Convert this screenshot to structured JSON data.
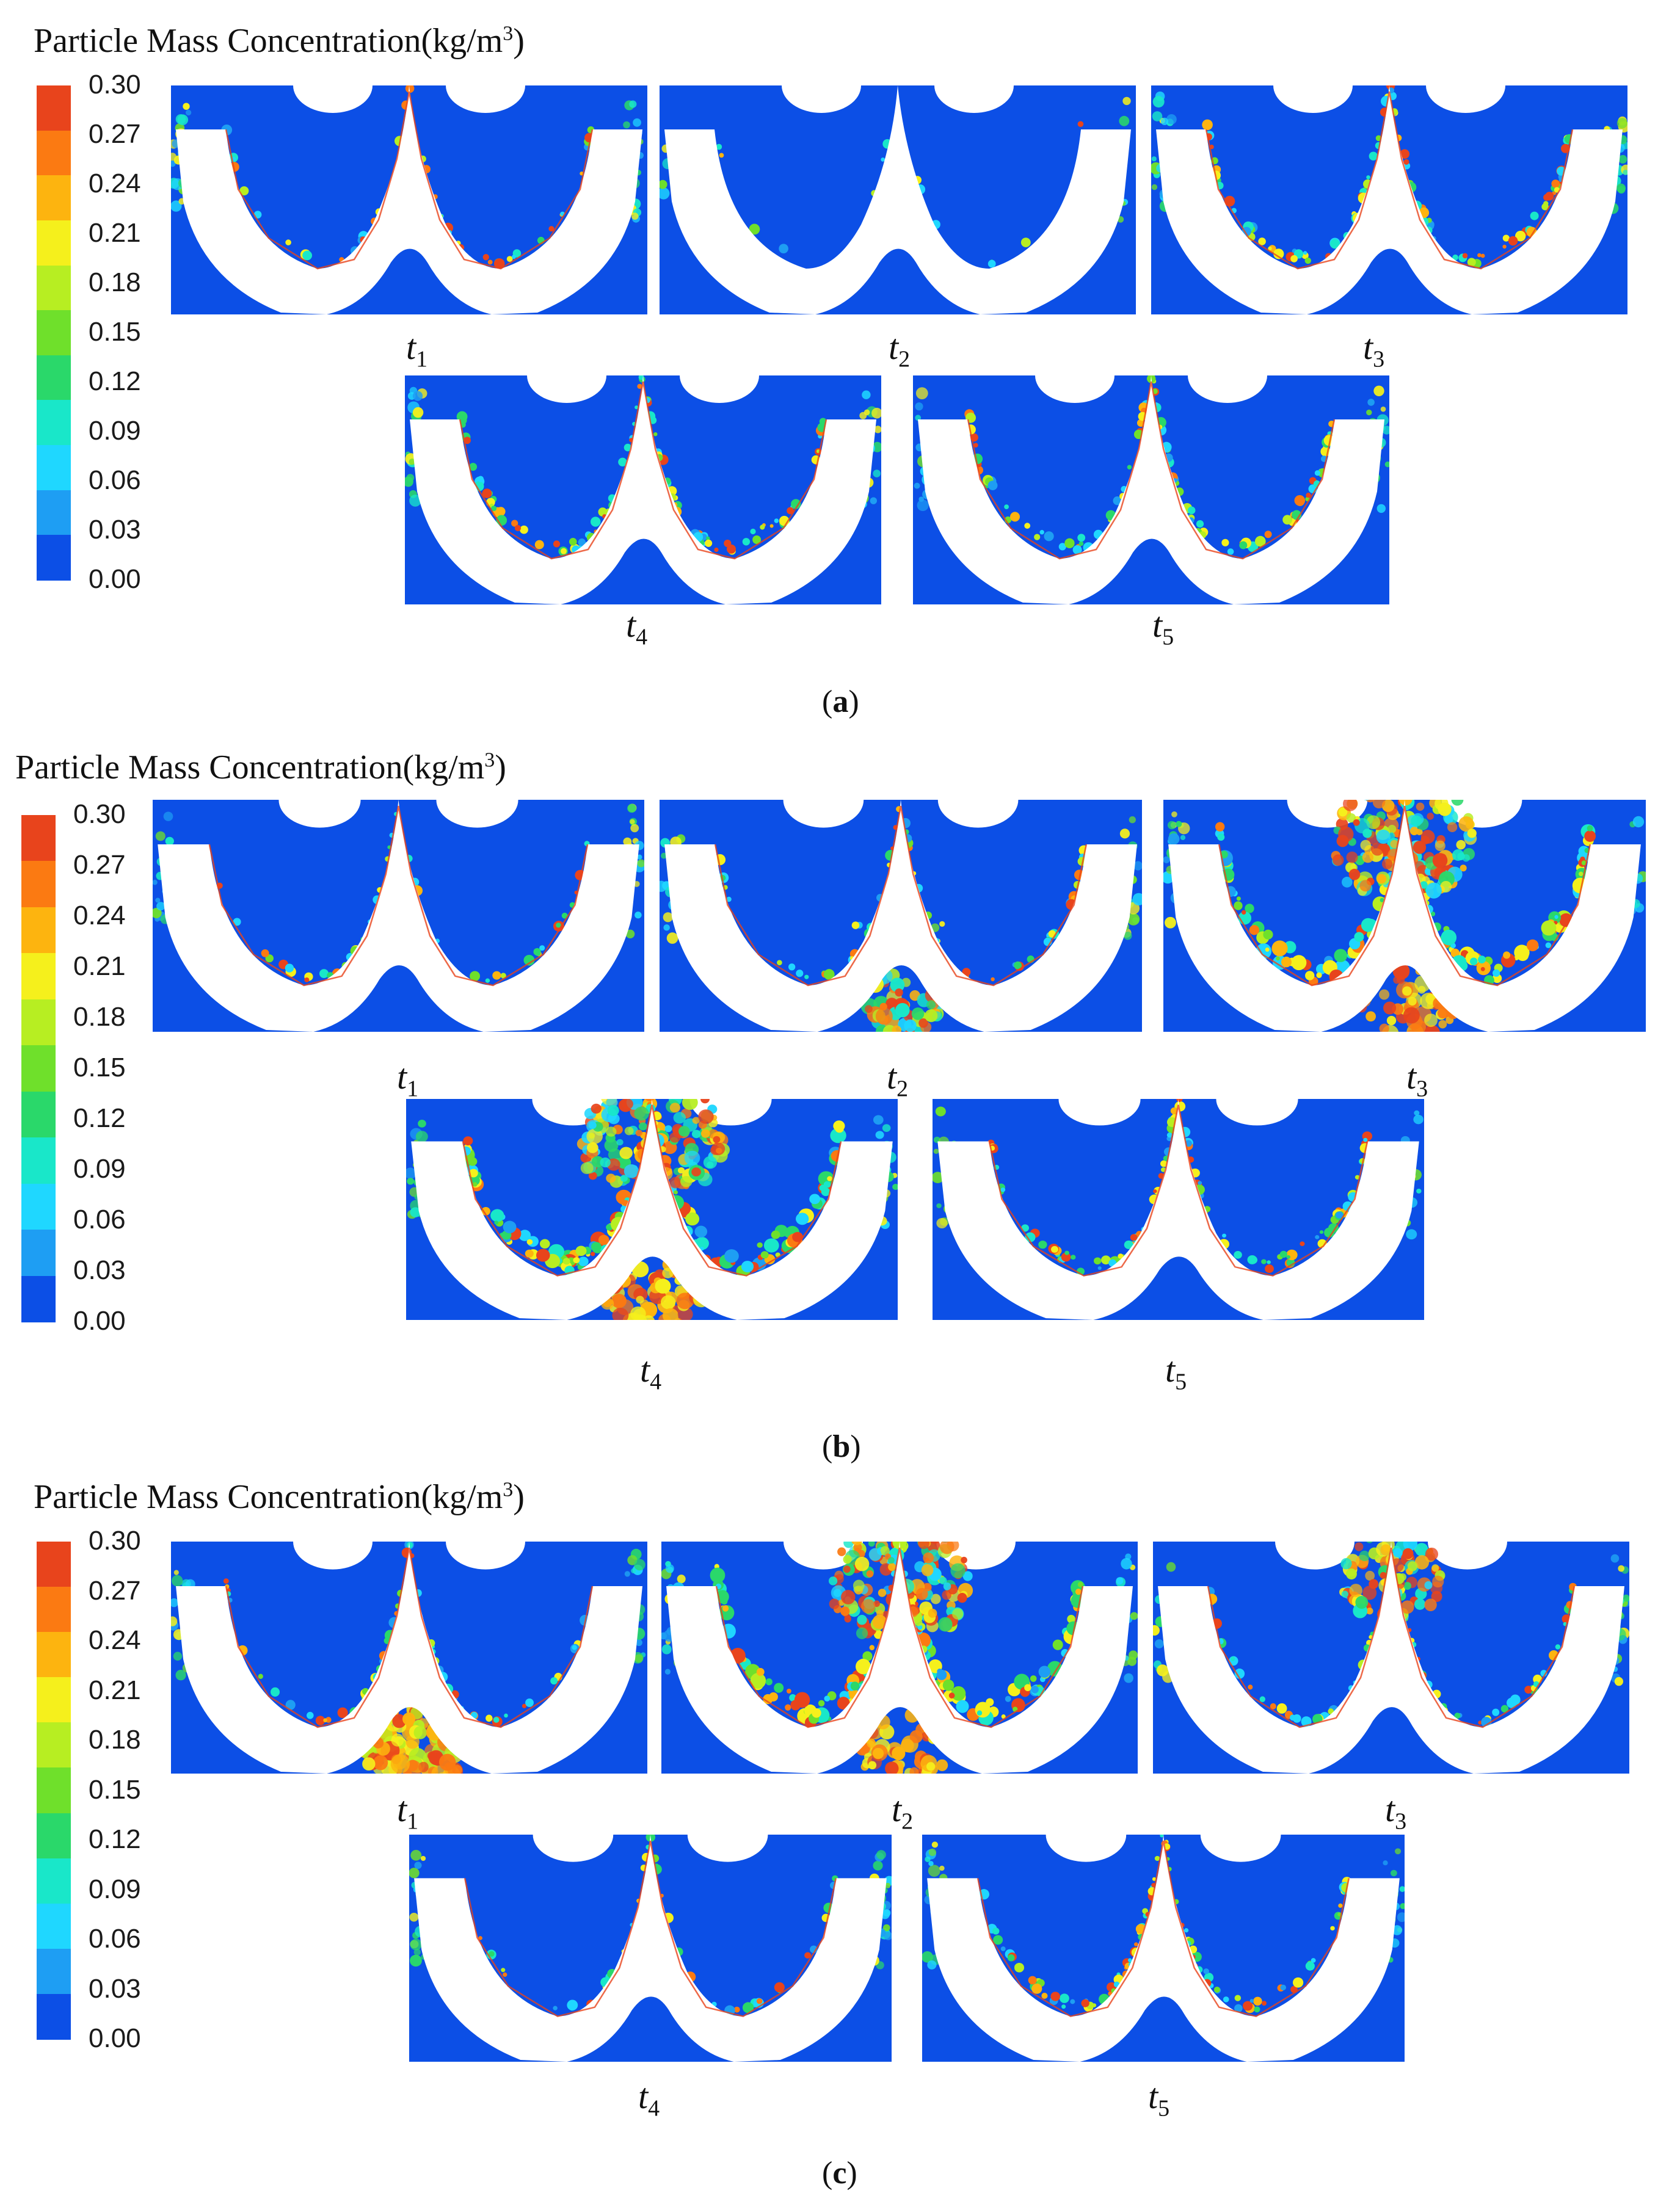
{
  "legend": {
    "title": "Particle Mass Concentration(kg/m",
    "title_sup": "3",
    "title_close": ")",
    "ticks": [
      "0.30",
      "0.27",
      "0.24",
      "0.21",
      "0.18",
      "0.15",
      "0.12",
      "0.09",
      "0.06",
      "0.03",
      "0.00"
    ],
    "colors": [
      "#e8441c",
      "#fb7a12",
      "#fdb40f",
      "#f5f01c",
      "#b7ee22",
      "#6fe02b",
      "#2ad86a",
      "#19e7c9",
      "#1fd7ff",
      "#1e9ef3",
      "#0c4fe6"
    ]
  },
  "colors": {
    "background": "#0c4fe6",
    "wall": "#ffffff"
  },
  "panels": [
    {
      "id": "a",
      "caption": "a",
      "frames": [
        {
          "base": "t",
          "sub": "1",
          "intensity": "low"
        },
        {
          "base": "t",
          "sub": "2",
          "intensity": "minimal"
        },
        {
          "base": "t",
          "sub": "3",
          "intensity": "medium"
        },
        {
          "base": "t",
          "sub": "4",
          "intensity": "medium"
        },
        {
          "base": "t",
          "sub": "5",
          "intensity": "medium"
        }
      ]
    },
    {
      "id": "b",
      "caption": "b",
      "frames": [
        {
          "base": "t",
          "sub": "1",
          "intensity": "low"
        },
        {
          "base": "t",
          "sub": "2",
          "intensity": "central-plume"
        },
        {
          "base": "t",
          "sub": "3",
          "intensity": "high"
        },
        {
          "base": "t",
          "sub": "4",
          "intensity": "high"
        },
        {
          "base": "t",
          "sub": "5",
          "intensity": "medium"
        }
      ]
    },
    {
      "id": "c",
      "caption": "c",
      "frames": [
        {
          "base": "t",
          "sub": "1",
          "intensity": "lower-plume"
        },
        {
          "base": "t",
          "sub": "2",
          "intensity": "high"
        },
        {
          "base": "t",
          "sub": "3",
          "intensity": "upper-plume"
        },
        {
          "base": "t",
          "sub": "4",
          "intensity": "low"
        },
        {
          "base": "t",
          "sub": "5",
          "intensity": "medium"
        }
      ]
    }
  ]
}
